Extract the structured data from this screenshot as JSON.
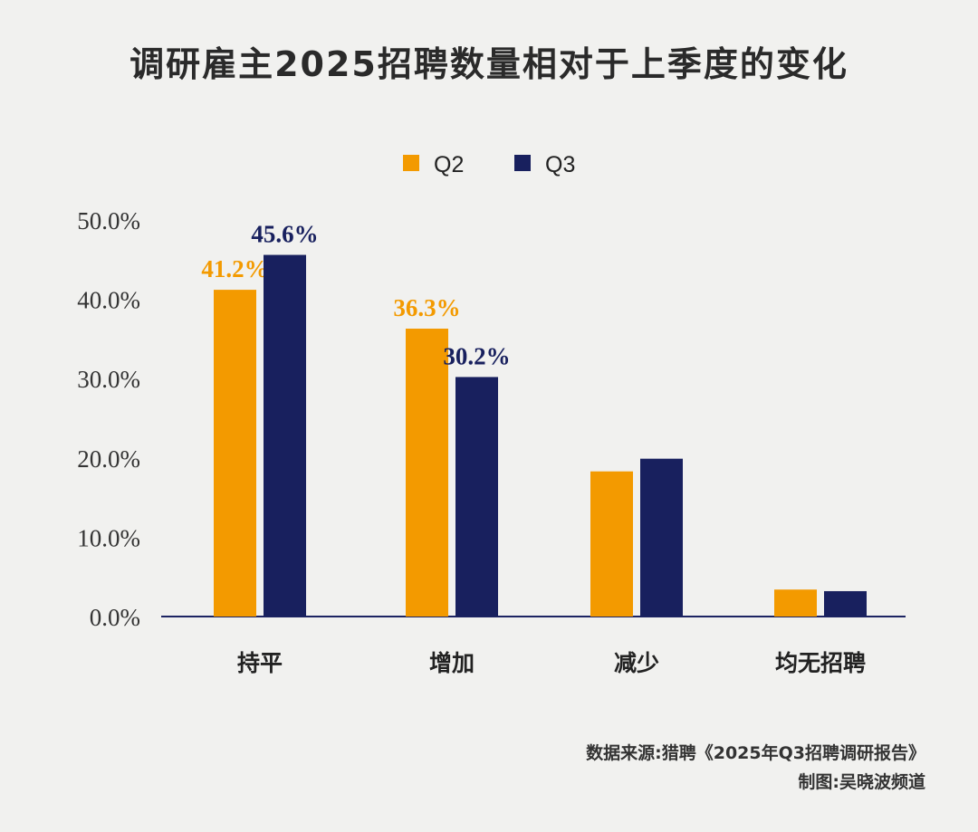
{
  "chart_data": {
    "type": "bar",
    "title": "调研雇主2025招聘数量相对于上季度的变化",
    "categories": [
      "持平",
      "增加",
      "减少",
      "均无招聘"
    ],
    "series": [
      {
        "name": "Q2",
        "color": "#f39a00",
        "values": [
          41.2,
          36.3,
          18.3,
          3.4
        ],
        "labels": [
          "41.2%",
          "36.3%",
          null,
          null
        ]
      },
      {
        "name": "Q3",
        "color": "#18205e",
        "values": [
          45.6,
          30.2,
          19.9,
          3.2
        ],
        "labels": [
          "45.6%",
          "30.2%",
          null,
          null
        ]
      }
    ],
    "ylim": [
      0,
      50
    ],
    "yticks": [
      "0.0%",
      "10.0%",
      "20.0%",
      "30.0%",
      "40.0%",
      "50.0%"
    ],
    "xlabel": "",
    "ylabel": "",
    "grid": false,
    "legend": "top-center"
  },
  "footer": {
    "source": "数据来源:猎聘《2025年Q3招聘调研报告》",
    "credit": "制图:吴晓波频道"
  }
}
